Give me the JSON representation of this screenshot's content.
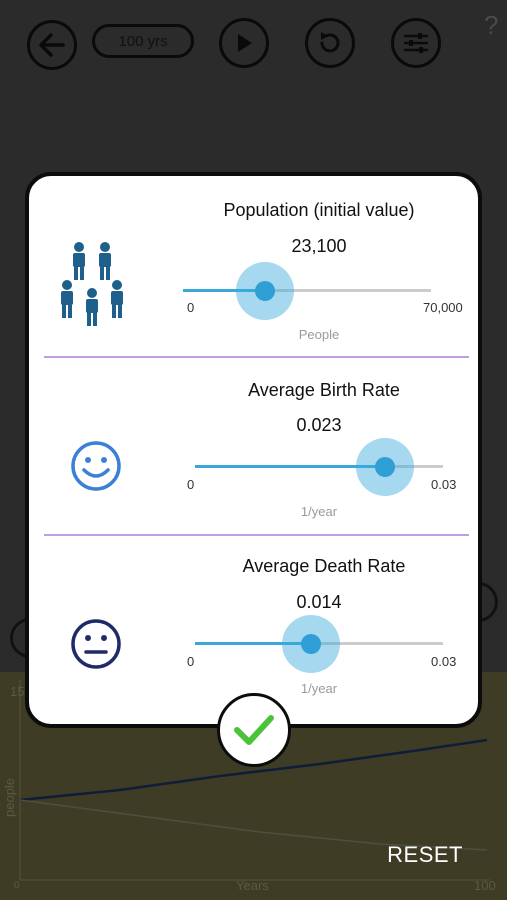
{
  "toolbar": {
    "duration_label": "100 yrs",
    "help_label": "?"
  },
  "modal": {
    "population": {
      "title": "Population (initial value)",
      "value": "23,100",
      "min_label": "0",
      "max_label": "70,000",
      "unit": "People",
      "fraction": 0.33
    },
    "birth_rate": {
      "title": "Average Birth Rate",
      "value": "0.023",
      "min_label": "0",
      "max_label": "0.03",
      "unit": "1/year",
      "fraction": 0.7667
    },
    "death_rate": {
      "title": "Average Death Rate",
      "value": "0.014",
      "min_label": "0",
      "max_label": "0.03",
      "unit": "1/year",
      "fraction": 0.4667
    }
  },
  "background": {
    "y_axis_label": "people",
    "x_axis_label": "Years",
    "x_start": "0",
    "x_end": "100",
    "y_top": "15",
    "reset_label": "RESET"
  },
  "colors": {
    "accent": "#2f9fd6",
    "divider": "#c39be0",
    "check": "#4cc23a",
    "people_icon": "#1f5f8b",
    "smile_icon": "#3b7fd6",
    "neutral_icon": "#1f2a6b"
  }
}
